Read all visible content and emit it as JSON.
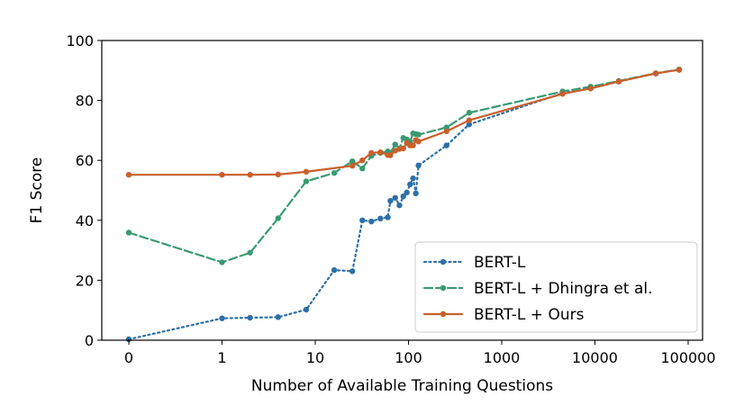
{
  "chart_data": {
    "type": "line",
    "title": "",
    "xlabel": "Number of Available Training Questions",
    "ylabel": "F1 Score",
    "x_scale": "symlog",
    "xticks": [
      0,
      1,
      10,
      100,
      1000,
      10000,
      100000
    ],
    "xtick_labels": [
      "0",
      "1",
      "10",
      "100",
      "1000",
      "10000",
      "100000"
    ],
    "ylim": [
      0,
      100
    ],
    "yticks": [
      0,
      20,
      40,
      60,
      80,
      100
    ],
    "ytick_labels": [
      "0",
      "20",
      "40",
      "60",
      "80",
      "100"
    ],
    "grid": false,
    "legend_position": "lower-right",
    "series": [
      {
        "name": "BERT-L",
        "color": "#2e6fa7",
        "line_style": "dotted",
        "points": [
          [
            0,
            0.3
          ],
          [
            1,
            7.3
          ],
          [
            2,
            7.5
          ],
          [
            4,
            7.7
          ],
          [
            8,
            10.2
          ],
          [
            16,
            23.4
          ],
          [
            25,
            23.0
          ],
          [
            32,
            40.0
          ],
          [
            40,
            39.6
          ],
          [
            50,
            40.6
          ],
          [
            60,
            41.0
          ],
          [
            64,
            46.5
          ],
          [
            72,
            47.5
          ],
          [
            80,
            45.0
          ],
          [
            88,
            48.0
          ],
          [
            96,
            49.3
          ],
          [
            104,
            52.0
          ],
          [
            112,
            54.0
          ],
          [
            120,
            49.0
          ],
          [
            128,
            58.3
          ],
          [
            256,
            65.0
          ],
          [
            448,
            72.0
          ],
          [
            4500,
            82.4
          ],
          [
            9000,
            84.0
          ],
          [
            18000,
            86.3
          ],
          [
            45000,
            89.0
          ],
          [
            80000,
            90.3
          ]
        ]
      },
      {
        "name": "BERT-L + Dhingra et al.",
        "color": "#3a9a72",
        "line_style": "dashed",
        "points": [
          [
            0,
            35.9
          ],
          [
            1,
            26.0
          ],
          [
            2,
            29.2
          ],
          [
            4,
            40.7
          ],
          [
            8,
            53.0
          ],
          [
            16,
            55.8
          ],
          [
            25,
            59.7
          ],
          [
            32,
            57.3
          ],
          [
            40,
            61.5
          ],
          [
            50,
            62.5
          ],
          [
            60,
            63.0
          ],
          [
            64,
            62.5
          ],
          [
            72,
            65.3
          ],
          [
            80,
            64.0
          ],
          [
            88,
            67.5
          ],
          [
            96,
            67.0
          ],
          [
            104,
            66.3
          ],
          [
            112,
            69.0
          ],
          [
            120,
            68.8
          ],
          [
            128,
            68.6
          ],
          [
            256,
            71.0
          ],
          [
            448,
            75.9
          ],
          [
            4500,
            83.0
          ],
          [
            9000,
            84.6
          ],
          [
            18000,
            86.5
          ],
          [
            45000,
            89.1
          ],
          [
            80000,
            90.3
          ]
        ]
      },
      {
        "name": "BERT-L + Ours",
        "color": "#c8602c",
        "line_style": "solid",
        "points": [
          [
            0,
            55.2
          ],
          [
            1,
            55.2
          ],
          [
            2,
            55.2
          ],
          [
            4,
            55.3
          ],
          [
            8,
            56.2
          ],
          [
            25,
            58.2
          ],
          [
            32,
            60.0
          ],
          [
            40,
            62.5
          ],
          [
            50,
            62.7
          ],
          [
            60,
            61.8
          ],
          [
            64,
            61.7
          ],
          [
            72,
            63.2
          ],
          [
            80,
            63.8
          ],
          [
            88,
            64.0
          ],
          [
            96,
            65.8
          ],
          [
            104,
            65.0
          ],
          [
            112,
            65.0
          ],
          [
            120,
            66.8
          ],
          [
            128,
            66.3
          ],
          [
            256,
            69.7
          ],
          [
            448,
            73.4
          ],
          [
            4500,
            82.2
          ],
          [
            9000,
            84.0
          ],
          [
            18000,
            86.3
          ],
          [
            45000,
            89.0
          ],
          [
            80000,
            90.2
          ]
        ]
      }
    ]
  }
}
